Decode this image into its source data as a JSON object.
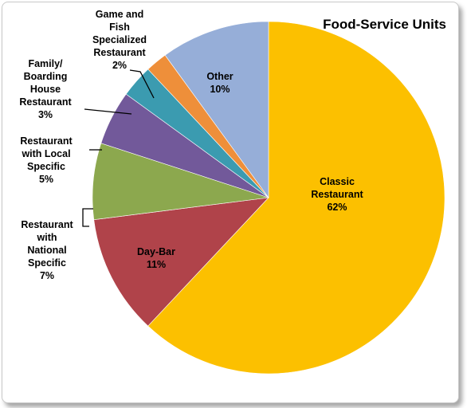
{
  "chart_data": {
    "type": "pie",
    "title": "Food-Service Units",
    "slices": [
      {
        "name": "Classic Restaurant",
        "label_lines": [
          "Classic",
          "Restaurant",
          "62%"
        ],
        "value": 62,
        "color": "#fcc000"
      },
      {
        "name": "Day-Bar",
        "label_lines": [
          "Day-Bar",
          "11%"
        ],
        "value": 11,
        "color": "#b0434a"
      },
      {
        "name": "Restaurant with National Specific",
        "label_lines": [
          "Restaurant",
          "with",
          "National",
          "Specific",
          "7%"
        ],
        "value": 7,
        "color": "#8ca84e"
      },
      {
        "name": "Restaurant with Local Specific",
        "label_lines": [
          "Restaurant",
          "with Local",
          "Specific",
          "5%"
        ],
        "value": 5,
        "color": "#72599a"
      },
      {
        "name": "Family/ Boarding House Restaurant",
        "label_lines": [
          "Family/",
          "Boarding",
          "House",
          "Restaurant",
          "3%"
        ],
        "value": 3,
        "color": "#3b9bb0"
      },
      {
        "name": "Game and Fish Specialized Restaurant",
        "label_lines": [
          "Game and",
          "Fish",
          "Specialized",
          "Restaurant",
          "2%"
        ],
        "value": 2,
        "color": "#ee8f3a"
      },
      {
        "name": "Other",
        "label_lines": [
          "Other",
          "10%"
        ],
        "value": 10,
        "color": "#96aed8"
      }
    ],
    "start_angle_deg": 0,
    "direction": "clockwise",
    "legend": "none",
    "data_labels": "category and percent"
  }
}
